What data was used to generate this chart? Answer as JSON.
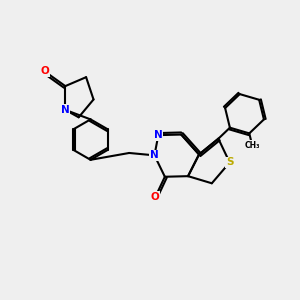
{
  "background_color": "#efefef",
  "atom_colors": {
    "C": "#000000",
    "N": "#0000ff",
    "O": "#ff0000",
    "S": "#bbaa00",
    "H": "#000000"
  },
  "bond_color": "#000000",
  "bond_width": 1.5,
  "font_size_atom": 7.5
}
